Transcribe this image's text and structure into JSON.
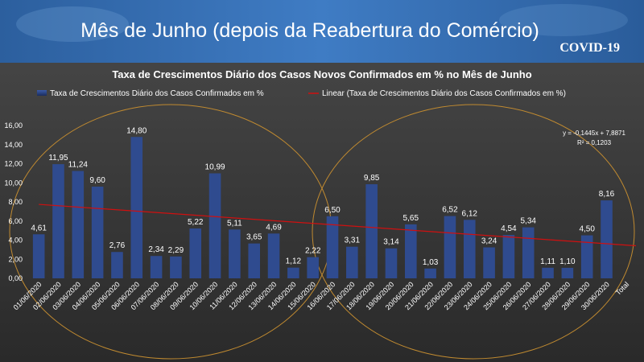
{
  "header": {
    "title": "Mês de Junho (depois da Reabertura do Comércio)",
    "badge": "COVID-19"
  },
  "chart_data": {
    "type": "bar",
    "title": "Taxa de Crescimentos Diário dos Casos Novos Confirmados em % no Mês de Junho",
    "categories": [
      "01/06/2020",
      "02/06/2020",
      "03/06/2020",
      "04/06/2020",
      "05/06/2020",
      "06/06/2020",
      "07/06/2020",
      "08/06/2020",
      "09/06/2020",
      "10/06/2020",
      "11/06/2020",
      "12/06/2020",
      "13/06/2020",
      "14/06/2020",
      "15/06/2020",
      "16/06/2020",
      "17/06/2020",
      "18/06/2020",
      "19/06/2020",
      "20/06/2020",
      "21/06/2020",
      "22/06/2020",
      "23/06/2020",
      "24/06/2020",
      "25/06/2020",
      "26/06/2020",
      "27/06/2020",
      "28/06/2020",
      "29/06/2020",
      "30/06/2020",
      "Total"
    ],
    "series": [
      {
        "name": "Taxa de Crescimentos Diário dos Casos Confirmados em %",
        "color": "#2f4b8f",
        "values": [
          4.61,
          11.95,
          11.24,
          9.6,
          2.76,
          14.8,
          2.34,
          2.29,
          5.22,
          10.99,
          5.11,
          3.65,
          4.69,
          1.12,
          2.22,
          6.5,
          3.31,
          9.85,
          3.14,
          5.65,
          1.03,
          6.52,
          6.12,
          3.24,
          4.54,
          5.34,
          1.11,
          1.1,
          4.5,
          8.16,
          null
        ],
        "value_labels": [
          "4,61",
          "11,95",
          "11,24",
          "9,60",
          "2,76",
          "14,80",
          "2,34",
          "2,29",
          "5,22",
          "10,99",
          "5,11",
          "3,65",
          "4,69",
          "1,12",
          "2,22",
          "6,50",
          "3,31",
          "9,85",
          "3,14",
          "5,65",
          "1,03",
          "6,52",
          "6,12",
          "3,24",
          "4,54",
          "5,34",
          "1,11",
          "1,10",
          "4,50",
          "8,16",
          null
        ]
      }
    ],
    "trendline": {
      "name": "Linear (Taxa de Crescimentos Diário dos Casos Confirmados em %)",
      "color": "#d01010",
      "slope": -0.1445,
      "intercept": 7.8871,
      "equation": "y = -0,1445x + 7,8871",
      "r2": "R² = 0,1203"
    },
    "ylim": [
      0,
      16
    ],
    "yticks": [
      {
        "value": 0,
        "label": "0,00"
      },
      {
        "value": 2,
        "label": "2,00"
      },
      {
        "value": 4,
        "label": "4,00"
      },
      {
        "value": 6,
        "label": "6,00"
      },
      {
        "value": 8,
        "label": "8,00"
      },
      {
        "value": 10,
        "label": "10,00"
      },
      {
        "value": 12,
        "label": "12,00"
      },
      {
        "value": 14,
        "label": "14,00"
      },
      {
        "value": 16,
        "label": "16,00"
      }
    ],
    "grid": false
  }
}
